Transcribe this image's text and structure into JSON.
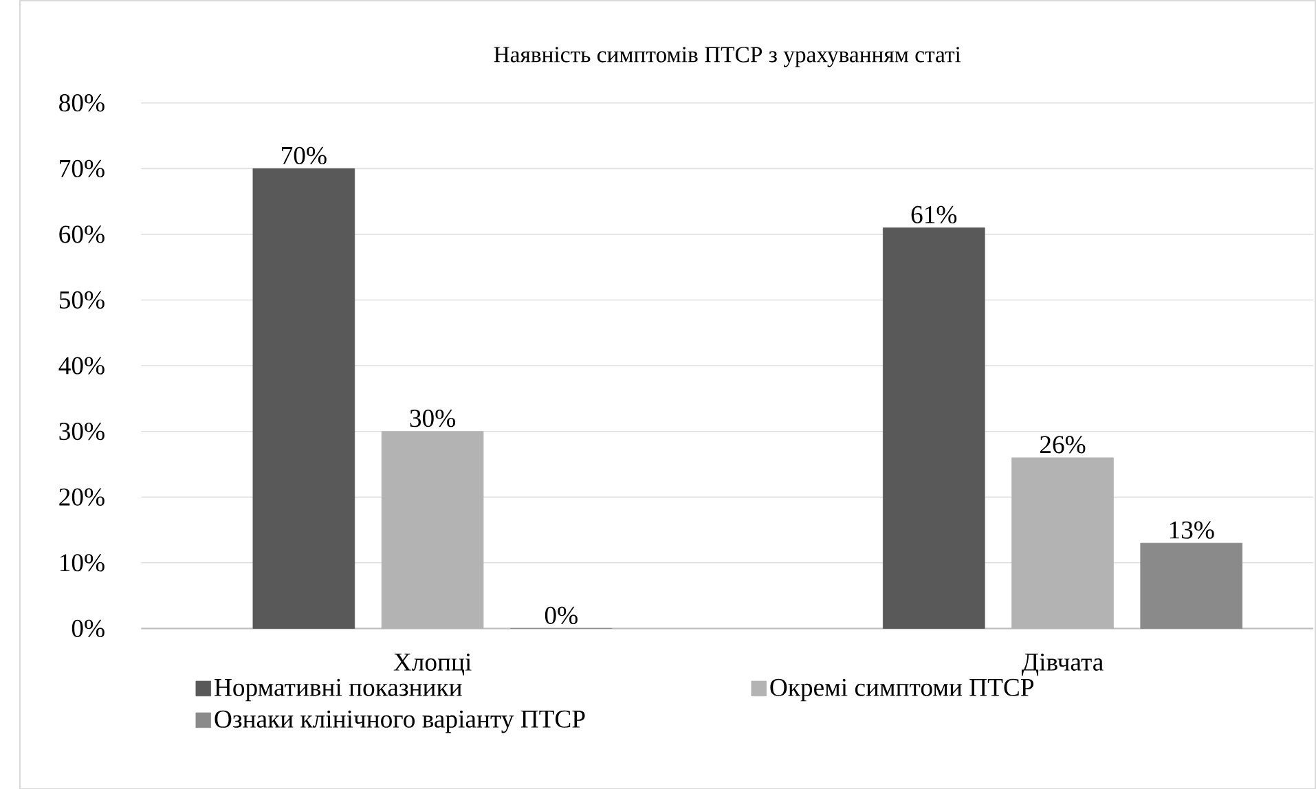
{
  "chart_data": {
    "type": "bar",
    "title": "Наявність симптомів ПТСР з урахуванням статі",
    "categories": [
      "Хлопці",
      "Дівчата"
    ],
    "series": [
      {
        "name": "Нормативні показники",
        "color": "#595959",
        "values": [
          70,
          61
        ],
        "value_labels": [
          "70%",
          "61%"
        ]
      },
      {
        "name": "Окремі симптоми ПТСР",
        "color": "#b3b3b3",
        "values": [
          30,
          26
        ],
        "value_labels": [
          "30%",
          "26%"
        ]
      },
      {
        "name": "Ознаки клінічного варіанту ПТСР",
        "color": "#8a8a8a",
        "values": [
          0,
          13
        ],
        "value_labels": [
          "0%",
          "13%"
        ]
      }
    ],
    "ylim": [
      0,
      80
    ],
    "yticks": [
      {
        "value": 0,
        "label": "0%"
      },
      {
        "value": 10,
        "label": "10%"
      },
      {
        "value": 20,
        "label": "20%"
      },
      {
        "value": 30,
        "label": "30%"
      },
      {
        "value": 40,
        "label": "40%"
      },
      {
        "value": 50,
        "label": "50%"
      },
      {
        "value": 60,
        "label": "60%"
      },
      {
        "value": 70,
        "label": "70%"
      },
      {
        "value": 80,
        "label": "80%"
      }
    ],
    "grid": "y",
    "legend": "bottom"
  }
}
